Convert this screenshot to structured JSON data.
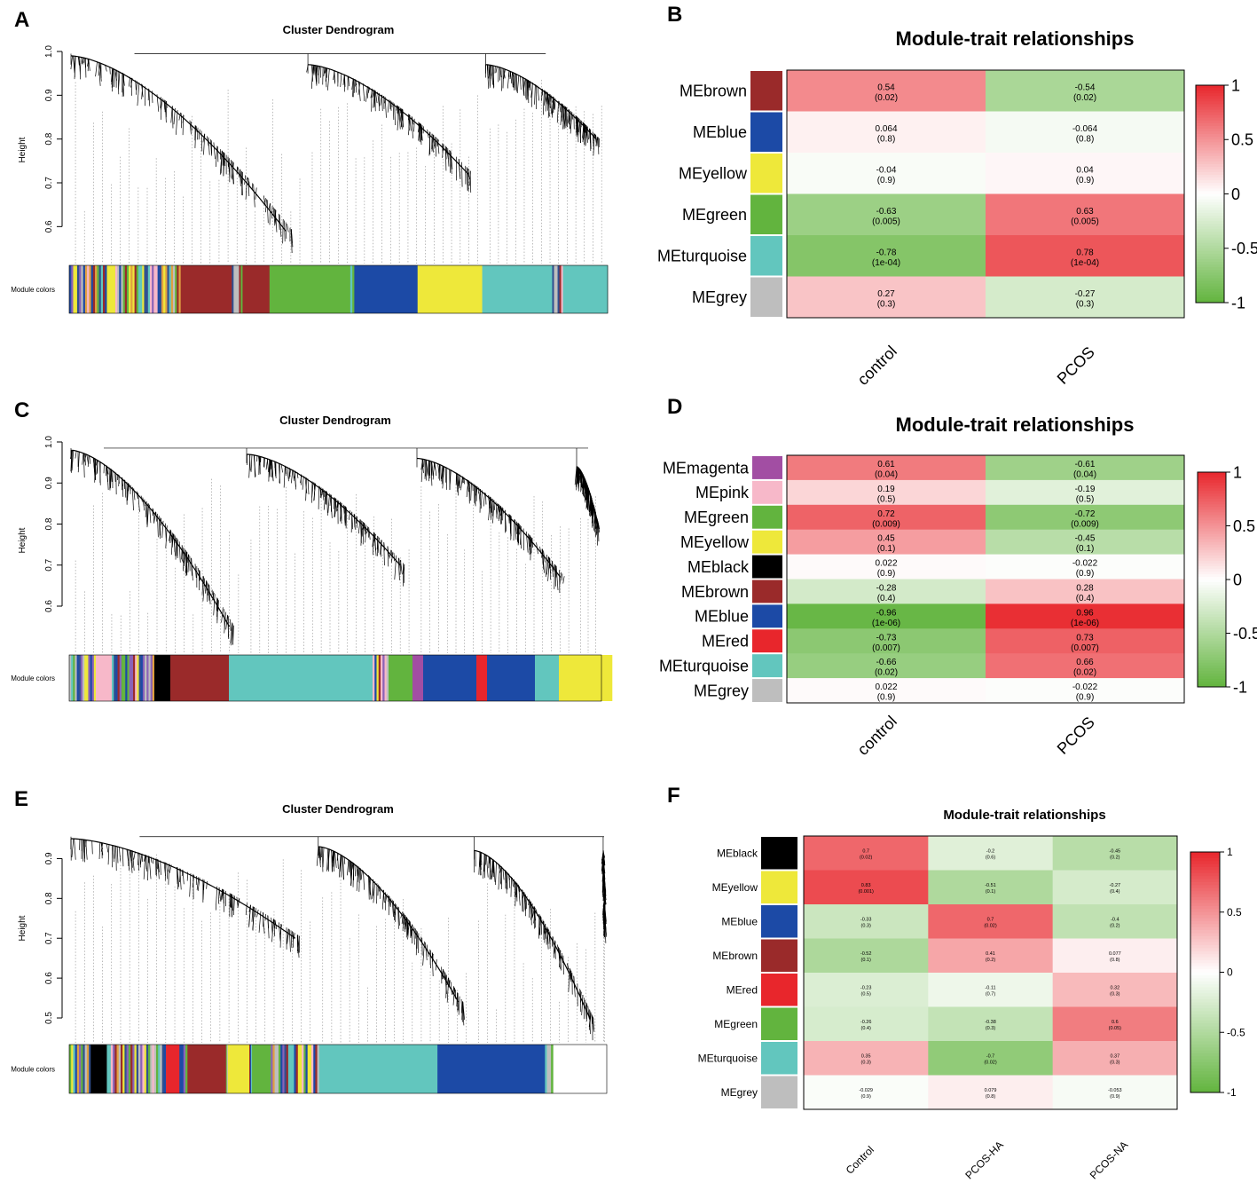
{
  "chart_data": [
    {
      "panel": "A",
      "type": "dendrogram",
      "title": "Cluster Dendrogram",
      "ylabel": "Height",
      "ylim": [
        0.55,
        1.0
      ],
      "yticks": [
        "0.6",
        "0.7",
        "0.8",
        "0.9",
        "1.0"
      ],
      "color_bar_label": "Module colors",
      "module_colors": [
        {
          "name": "mixed",
          "share": 0.07
        },
        {
          "name": "yellow",
          "share": 0.012
        },
        {
          "name": "mixed",
          "share": 0.05
        },
        {
          "name": "mixed",
          "share": 0.075
        },
        {
          "name": "brown",
          "share": 0.095
        },
        {
          "name": "mixed",
          "share": 0.02
        },
        {
          "name": "brown",
          "share": 0.05
        },
        {
          "name": "green",
          "share": 0.15
        },
        {
          "name": "mixed",
          "share": 0.015
        },
        {
          "name": "blue",
          "share": 0.11
        },
        {
          "name": "yellow",
          "share": 0.12
        },
        {
          "name": "turquoise",
          "share": 0.13
        },
        {
          "name": "mixed",
          "share": 0.02
        },
        {
          "name": "turquoise",
          "share": 0.083
        }
      ],
      "branches": [
        {
          "start": 0.0,
          "end": 0.44,
          "top": 0.99,
          "tip": 0.59
        },
        {
          "start": 0.44,
          "end": 0.77,
          "top": 0.97,
          "tip": 0.72
        },
        {
          "start": 0.77,
          "end": 1.0,
          "top": 0.97,
          "tip": 0.8
        }
      ]
    },
    {
      "panel": "B",
      "type": "heatmap",
      "title": "Module-trait relationships",
      "rows": [
        "MEbrown",
        "MEblue",
        "MEyellow",
        "MEgreen",
        "MEturquoise",
        "MEgrey"
      ],
      "row_colors": [
        "#9a2a2a",
        "#1c4aa6",
        "#eee83a",
        "#62b43e",
        "#62c6be",
        "#bebebe"
      ],
      "columns": [
        "control",
        "PCOS"
      ],
      "values": [
        [
          0.54,
          -0.54
        ],
        [
          0.064,
          -0.064
        ],
        [
          -0.04,
          0.04
        ],
        [
          -0.63,
          0.63
        ],
        [
          -0.78,
          0.78
        ],
        [
          0.27,
          -0.27
        ]
      ],
      "labels": [
        [
          "0.54",
          "-0.54"
        ],
        [
          "0.064",
          "-0.064"
        ],
        [
          "-0.04",
          "0.04"
        ],
        [
          "-0.63",
          "0.63"
        ],
        [
          "-0.78",
          "0.78"
        ],
        [
          "0.27",
          "-0.27"
        ]
      ],
      "pvalues": [
        [
          "(0.02)",
          "(0.02)"
        ],
        [
          "(0.8)",
          "(0.8)"
        ],
        [
          "(0.9)",
          "(0.9)"
        ],
        [
          "(0.005)",
          "(0.005)"
        ],
        [
          "(1e-04)",
          "(1e-04)"
        ],
        [
          "(0.3)",
          "(0.3)"
        ]
      ],
      "legend_ticks": [
        "1",
        "0.5",
        "0",
        "-0.5",
        "-1"
      ],
      "legend_range": [
        -1,
        1
      ]
    },
    {
      "panel": "C",
      "type": "dendrogram",
      "title": "Cluster Dendrogram",
      "ylabel": "Height",
      "ylim": [
        0.52,
        1.0
      ],
      "yticks": [
        "0.6",
        "0.7",
        "0.8",
        "0.9",
        "1.0"
      ],
      "color_bar_label": "Module colors",
      "module_colors": [
        {
          "name": "mixed",
          "share": 0.05
        },
        {
          "name": "pink",
          "share": 0.03
        },
        {
          "name": "mixed",
          "share": 0.08
        },
        {
          "name": "black",
          "share": 0.03
        },
        {
          "name": "brown",
          "share": 0.11
        },
        {
          "name": "turquoise",
          "share": 0.27
        },
        {
          "name": "mixed",
          "share": 0.03
        },
        {
          "name": "green",
          "share": 0.045
        },
        {
          "name": "magenta",
          "share": 0.02
        },
        {
          "name": "blue",
          "share": 0.1
        },
        {
          "name": "red",
          "share": 0.02
        },
        {
          "name": "blue",
          "share": 0.09
        },
        {
          "name": "turquoise",
          "share": 0.045
        },
        {
          "name": "yellow",
          "share": 0.1
        }
      ],
      "branches": [
        {
          "start": 0.0,
          "end": 0.33,
          "top": 0.98,
          "tip": 0.55
        },
        {
          "start": 0.33,
          "end": 0.65,
          "top": 0.97,
          "tip": 0.7
        },
        {
          "start": 0.65,
          "end": 0.95,
          "top": 0.96,
          "tip": 0.67
        },
        {
          "start": 0.95,
          "end": 1.0,
          "top": 0.94,
          "tip": 0.8
        }
      ]
    },
    {
      "panel": "D",
      "type": "heatmap",
      "title": "Module-trait relationships",
      "rows": [
        "MEmagenta",
        "MEpink",
        "MEgreen",
        "MEyellow",
        "MEblack",
        "MEbrown",
        "MEblue",
        "MEred",
        "MEturquoise",
        "MEgrey"
      ],
      "row_colors": [
        "#a24ea3",
        "#f7b8c9",
        "#62b43e",
        "#eee83a",
        "#000000",
        "#9a2a2a",
        "#1c4aa6",
        "#e8262c",
        "#62c6be",
        "#bebebe"
      ],
      "columns": [
        "control",
        "PCOS"
      ],
      "values": [
        [
          0.61,
          -0.61
        ],
        [
          0.19,
          -0.19
        ],
        [
          0.72,
          -0.72
        ],
        [
          0.45,
          -0.45
        ],
        [
          0.022,
          -0.022
        ],
        [
          -0.28,
          0.28
        ],
        [
          -0.96,
          0.96
        ],
        [
          -0.73,
          0.73
        ],
        [
          -0.66,
          0.66
        ],
        [
          0.022,
          -0.022
        ]
      ],
      "labels": [
        [
          "0.61",
          "-0.61"
        ],
        [
          "0.19",
          "-0.19"
        ],
        [
          "0.72",
          "-0.72"
        ],
        [
          "0.45",
          "-0.45"
        ],
        [
          "0.022",
          "-0.022"
        ],
        [
          "-0.28",
          "0.28"
        ],
        [
          "-0.96",
          "0.96"
        ],
        [
          "-0.73",
          "0.73"
        ],
        [
          "-0.66",
          "0.66"
        ],
        [
          "0.022",
          "-0.022"
        ]
      ],
      "pvalues": [
        [
          "(0.04)",
          "(0.04)"
        ],
        [
          "(0.5)",
          "(0.5)"
        ],
        [
          "(0.009)",
          "(0.009)"
        ],
        [
          "(0.1)",
          "(0.1)"
        ],
        [
          "(0.9)",
          "(0.9)"
        ],
        [
          "(0.4)",
          "(0.4)"
        ],
        [
          "(1e-06)",
          "(1e-06)"
        ],
        [
          "(0.007)",
          "(0.007)"
        ],
        [
          "(0.02)",
          "(0.02)"
        ],
        [
          "(0.9)",
          "(0.9)"
        ]
      ],
      "legend_ticks": [
        "1",
        "0.5",
        "0",
        "-0.5",
        "-1"
      ],
      "legend_range": [
        -1,
        1
      ]
    },
    {
      "panel": "E",
      "type": "dendrogram",
      "title": "Cluster Dendrogram",
      "ylabel": "Height",
      "ylim": [
        0.48,
        0.97
      ],
      "yticks": [
        "0.5",
        "0.6",
        "0.7",
        "0.8",
        "0.9"
      ],
      "color_bar_label": "Module colors",
      "module_colors": [
        {
          "name": "mixed",
          "share": 0.04
        },
        {
          "name": "black",
          "share": 0.03
        },
        {
          "name": "mixed",
          "share": 0.11
        },
        {
          "name": "red",
          "share": 0.025
        },
        {
          "name": "mixed",
          "share": 0.015
        },
        {
          "name": "brown",
          "share": 0.07
        },
        {
          "name": "mixed",
          "share": 0.005
        },
        {
          "name": "yellow",
          "share": 0.04
        },
        {
          "name": "mixed",
          "share": 0.005
        },
        {
          "name": "green",
          "share": 0.035
        },
        {
          "name": "mixed",
          "share": 0.09
        },
        {
          "name": "turquoise",
          "share": 0.22
        },
        {
          "name": "blue",
          "share": 0.2
        },
        {
          "name": "mixed",
          "share": 0.015
        }
      ],
      "branches": [
        {
          "start": 0.0,
          "end": 0.46,
          "top": 0.95,
          "tip": 0.7
        },
        {
          "start": 0.46,
          "end": 0.75,
          "top": 0.93,
          "tip": 0.54
        },
        {
          "start": 0.75,
          "end": 0.99,
          "top": 0.92,
          "tip": 0.5
        },
        {
          "start": 0.99,
          "end": 1.0,
          "top": 0.92,
          "tip": 0.74
        }
      ]
    },
    {
      "panel": "F",
      "type": "heatmap",
      "title": "Module-trait relationships",
      "rows": [
        "MEblack",
        "MEyellow",
        "MEblue",
        "MEbrown",
        "MEred",
        "MEgreen",
        "MEturquoise",
        "MEgrey"
      ],
      "row_colors": [
        "#000000",
        "#eee83a",
        "#1c4aa6",
        "#9a2a2a",
        "#e8262c",
        "#62b43e",
        "#62c6be",
        "#bebebe"
      ],
      "columns": [
        "Control",
        "PCOS-HA",
        "PCOS-NA"
      ],
      "values": [
        [
          0.7,
          -0.2,
          -0.45
        ],
        [
          0.83,
          -0.51,
          -0.27
        ],
        [
          -0.33,
          0.7,
          -0.4
        ],
        [
          -0.52,
          0.41,
          0.077
        ],
        [
          -0.23,
          -0.11,
          0.32
        ],
        [
          -0.26,
          -0.38,
          0.6
        ],
        [
          0.35,
          -0.7,
          0.37
        ],
        [
          -0.029,
          0.079,
          -0.053
        ]
      ],
      "labels": [
        [
          "0.7",
          "-0.2",
          "-0.45"
        ],
        [
          "0.83",
          "-0.51",
          "-0.27"
        ],
        [
          "-0.33",
          "0.7",
          "-0.4"
        ],
        [
          "-0.52",
          "0.41",
          "0.077"
        ],
        [
          "-0.23",
          "-0.11",
          "0.32"
        ],
        [
          "-0.26",
          "-0.38",
          "0.6"
        ],
        [
          "0.35",
          "-0.7",
          "0.37"
        ],
        [
          "-0.029",
          "0.079",
          "-0.053"
        ]
      ],
      "pvalues": [
        [
          "(0.02)",
          "(0.6)",
          "(0.2)"
        ],
        [
          "(0.001)",
          "(0.1)",
          "(0.4)"
        ],
        [
          "(0.3)",
          "(0.02)",
          "(0.2)"
        ],
        [
          "(0.1)",
          "(0.2)",
          "(0.8)"
        ],
        [
          "(0.5)",
          "(0.7)",
          "(0.3)"
        ],
        [
          "(0.4)",
          "(0.3)",
          "(0.05)"
        ],
        [
          "(0.3)",
          "(0.02)",
          "(0.3)"
        ],
        [
          "(0.9)",
          "(0.8)",
          "(0.9)"
        ]
      ],
      "legend_ticks": [
        "1",
        "0.5",
        "0",
        "-0.5",
        "-1"
      ],
      "legend_range": [
        -1,
        1
      ]
    }
  ],
  "palette": {
    "brown": "#9a2a2a",
    "blue": "#1c4aa6",
    "yellow": "#eee83a",
    "green": "#62b43e",
    "turquoise": "#62c6be",
    "grey": "#bebebe",
    "pink": "#f7b8c9",
    "black": "#000000",
    "red": "#e8262c",
    "magenta": "#a24ea3",
    "neg": "#62b43e",
    "mid": "#ffffff",
    "pos": "#e8262c"
  }
}
